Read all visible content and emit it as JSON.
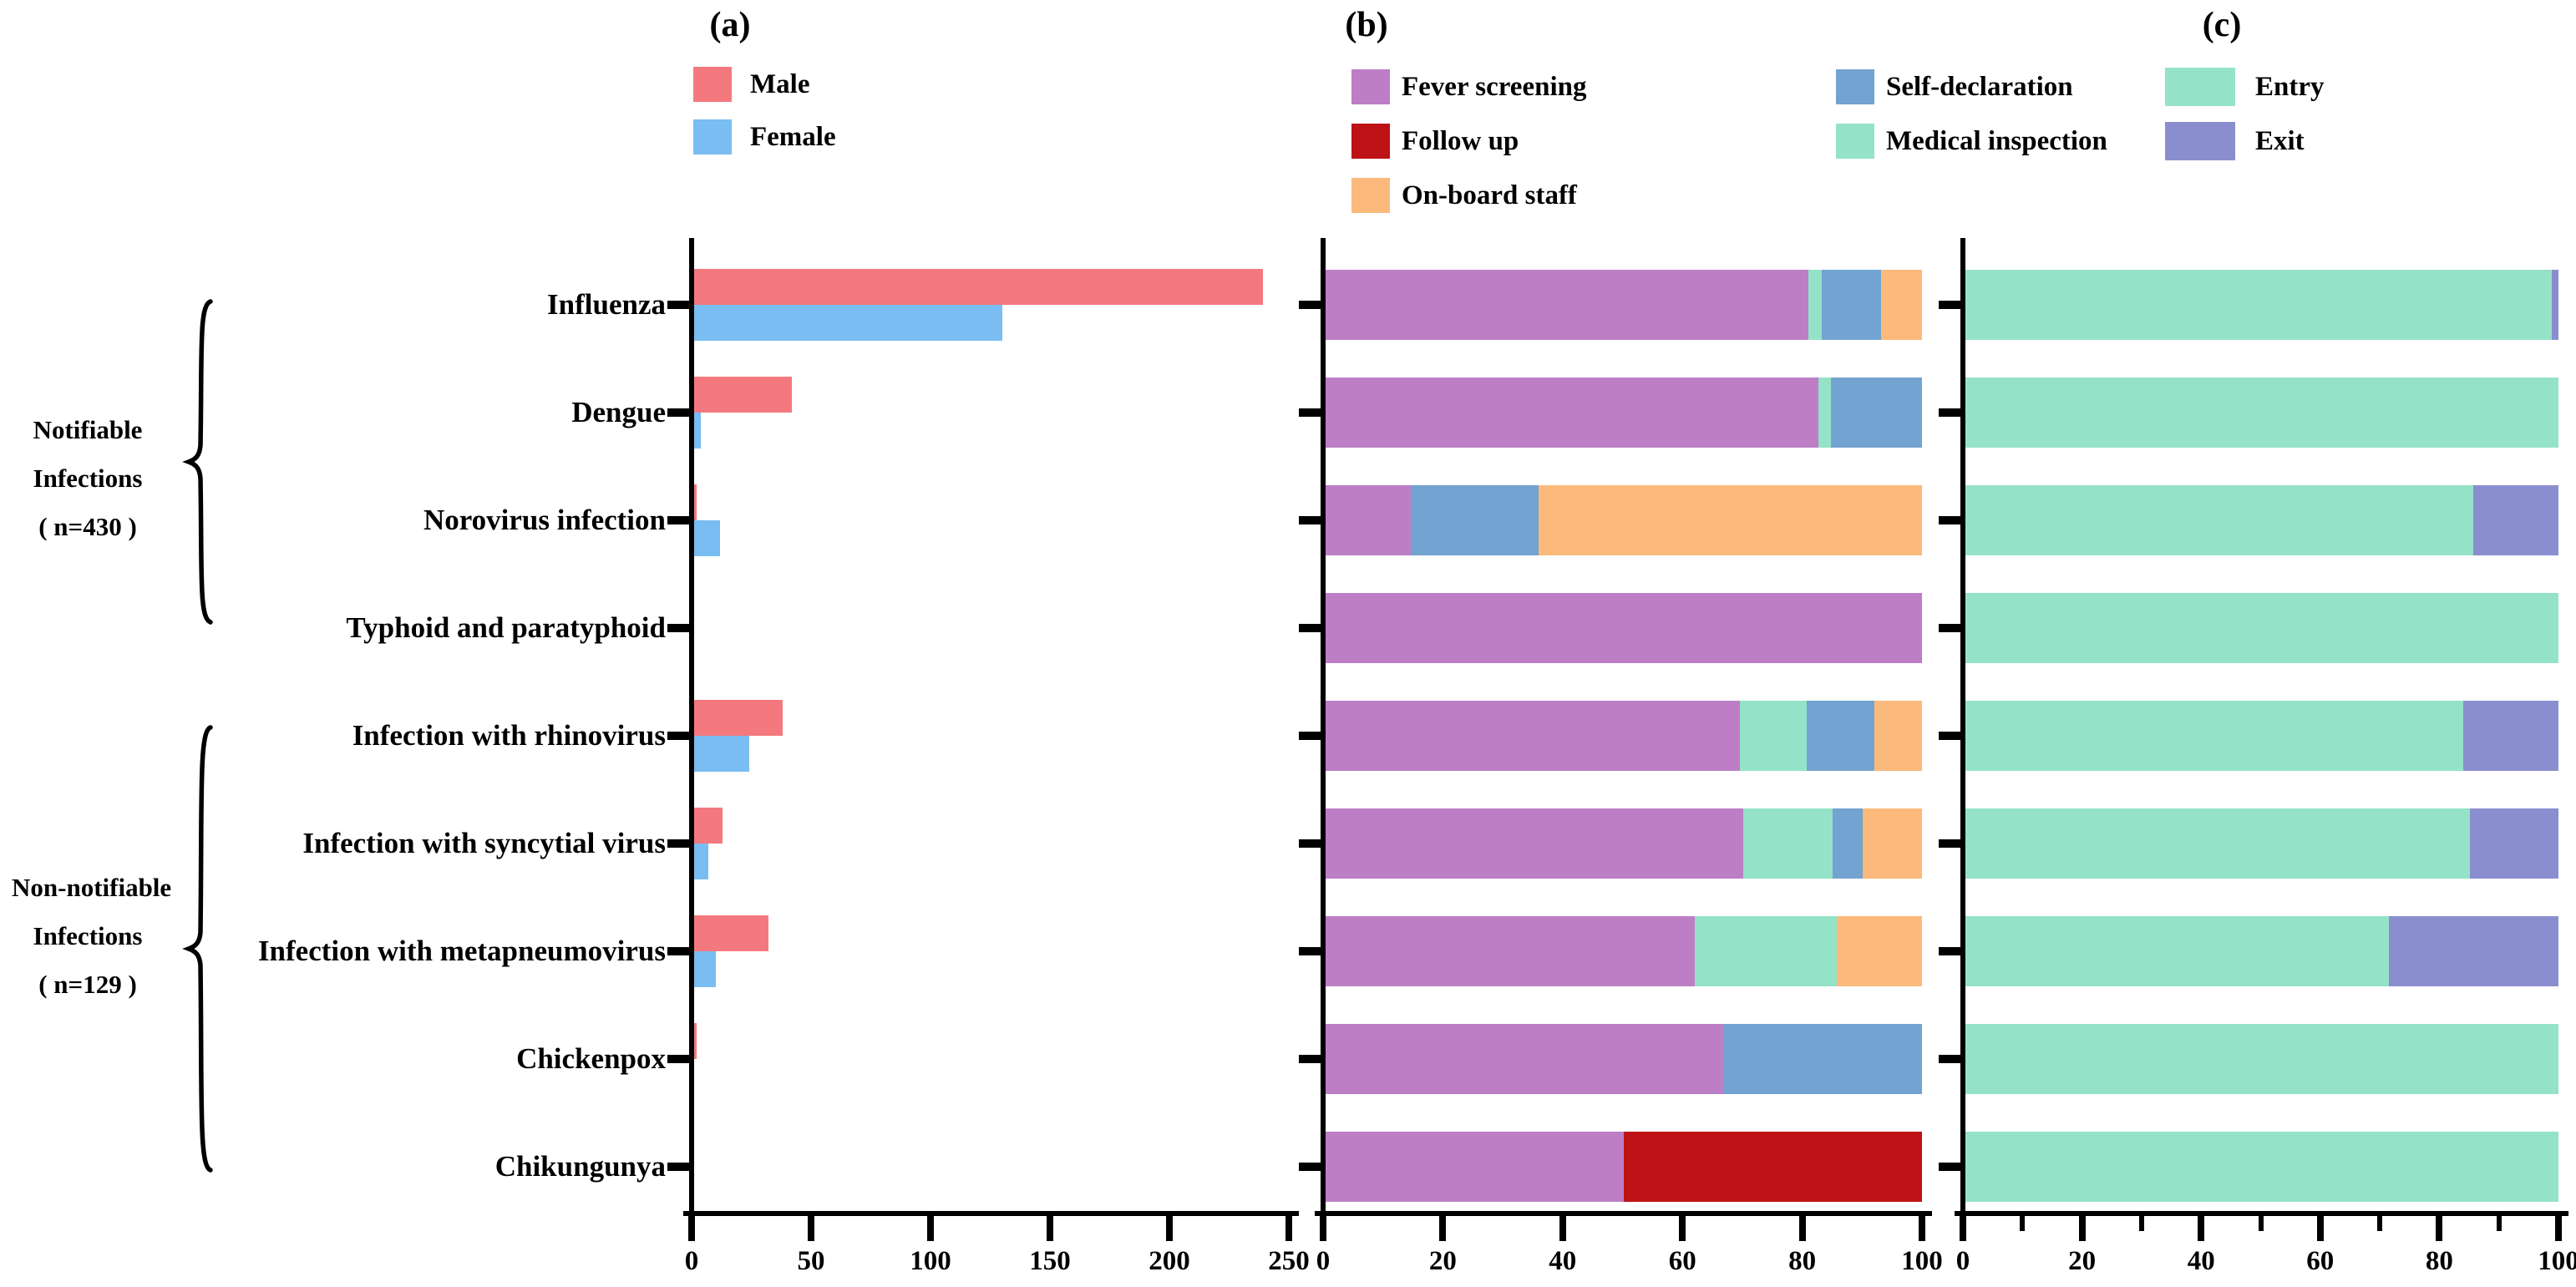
{
  "figure": {
    "background": "#ffffff",
    "groups": [
      {
        "lines": [
          "Notifiable",
          "Infections",
          "( n=430 )"
        ],
        "row_span": [
          0,
          3
        ]
      },
      {
        "lines": [
          "Non-notifiable",
          "Infections",
          "( n=129 )"
        ],
        "row_span": [
          4,
          8
        ]
      }
    ]
  },
  "chart_data": [
    {
      "id": "a",
      "title": "(a)",
      "type": "bar",
      "orientation": "horizontal",
      "grid": false,
      "legend_position": "top",
      "categories": [
        "Influenza",
        "Dengue",
        "Norovirus infection",
        "Typhoid and paratyphoid",
        "Infection with rhinovirus",
        "Infection with syncytial virus",
        "Infection with metapneumovirus",
        "Chickenpox",
        "Chikungunya"
      ],
      "series": [
        {
          "name": "Male",
          "color": "#F4797F",
          "values": [
            239,
            42,
            2,
            1,
            38,
            13,
            32,
            2,
            1
          ]
        },
        {
          "name": "Female",
          "color": "#79BDF2",
          "values": [
            130,
            4,
            12,
            0,
            24,
            7,
            10,
            1,
            1
          ]
        }
      ],
      "xlim": [
        0,
        250
      ],
      "xticks": [
        0,
        50,
        100,
        150,
        200,
        250
      ]
    },
    {
      "id": "b",
      "title": "(b)",
      "type": "stacked-bar-100",
      "orientation": "horizontal",
      "grid": false,
      "legend_position": "top",
      "unit": "percent",
      "categories": [
        "Influenza",
        "Dengue",
        "Norovirus infection",
        "Typhoid and paratyphoid",
        "Infection with rhinovirus",
        "Infection with syncytial virus",
        "Infection with metapneumovirus",
        "Chickenpox",
        "Chikungunya"
      ],
      "series": [
        {
          "name": "Fever screening",
          "color": "#BD7EC6",
          "values": [
            81.0,
            82.6,
            14.3,
            100,
            69.4,
            70.0,
            61.9,
            66.7,
            50.0
          ]
        },
        {
          "name": "Follow up",
          "color": "#BD1216",
          "values": [
            0,
            0,
            0,
            0,
            0,
            0,
            0,
            0,
            50.0
          ]
        },
        {
          "name": "Medical inspection",
          "color": "#94E3C8",
          "values": [
            2.2,
            2.2,
            0,
            0,
            11.3,
            15.0,
            23.8,
            0,
            0
          ]
        },
        {
          "name": "Self-declaration",
          "color": "#73A3D0",
          "values": [
            10.0,
            15.2,
            21.4,
            0,
            11.3,
            5.0,
            0,
            33.3,
            0
          ]
        },
        {
          "name": "On-board staff",
          "color": "#FBBA7B",
          "values": [
            6.8,
            0,
            64.3,
            0,
            8.0,
            10.0,
            14.3,
            0,
            0
          ]
        }
      ],
      "xlim": [
        0,
        100
      ],
      "xticks": [
        0,
        20,
        40,
        60,
        80,
        100
      ]
    },
    {
      "id": "c",
      "title": "(c)",
      "type": "stacked-bar-100",
      "orientation": "horizontal",
      "grid": false,
      "legend_position": "top",
      "unit": "percent",
      "categories": [
        "Influenza",
        "Dengue",
        "Norovirus infection",
        "Typhoid and paratyphoid",
        "Infection with rhinovirus",
        "Infection with syncytial virus",
        "Infection with metapneumovirus",
        "Chickenpox",
        "Chikungunya"
      ],
      "series": [
        {
          "name": "Entry",
          "color": "#94E3C8",
          "values": [
            98.9,
            100,
            85.7,
            100,
            83.9,
            85.0,
            71.4,
            100,
            100
          ]
        },
        {
          "name": "Exit",
          "color": "#8B8ECE",
          "values": [
            1.1,
            0,
            14.3,
            0,
            16.1,
            15.0,
            28.6,
            0,
            0
          ]
        }
      ],
      "xlim": [
        0,
        100
      ],
      "xticks": [
        0,
        20,
        40,
        60,
        80,
        100
      ],
      "minor_xticks": [
        10,
        30,
        50,
        70,
        90
      ]
    }
  ]
}
